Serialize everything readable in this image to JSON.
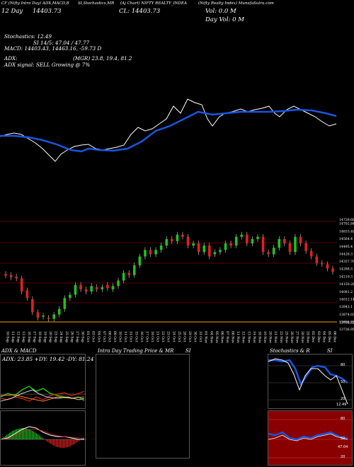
{
  "header": {
    "line1_a": "CF (Nifty Intra Day) ADX,MACD,B",
    "line1_b": "SI,Stochastics,MR",
    "line1_c": "(Aj Chart) NIFTY REALTY_INDEA",
    "line1_d": "(Nifty Realty Index) MunafaSutra.com",
    "close_left": "12 Day",
    "close_left_val": "14403.73",
    "cl_label": "CL: 14403.73",
    "vol_label": "Vol: 0.0  M",
    "day_vol": "Day Vol: 0   M"
  },
  "indicators": {
    "stochastics": "Stochastics: 12.49",
    "si": "SI 14/5: 47.04 / 47.77",
    "macd": "MACD: 14403.43, 14463.16, -59.73 D",
    "adx": "ADX:",
    "mgr": "(MGR) 23.8, 19.4, 81.2",
    "adx_signal": "ADX  signal: SELL Growing @ 7%"
  },
  "price_axis": [
    "14739.68",
    "14702.84",
    "14633.49",
    "14564.4",
    "14495.4",
    "14426.3",
    "14357.78",
    "14288.5",
    "14219.3",
    "14150.28",
    "14081.2",
    "14012.14",
    "13943.1",
    "13874.03",
    "13805.01",
    "13798.52",
    "13736.95"
  ],
  "dates": [
    "10 Sep",
    "11 Sep",
    "12 Sep",
    "13 Sep",
    "16 Sep",
    "17 Sep",
    "18 Sep",
    "19 Sep",
    "20 Sep",
    "23 Sep",
    "24 Sep",
    "25 Sep",
    "26 Sep",
    "27 Sep",
    "30 Sep",
    "01 Oct",
    "03 Oct",
    "04 Oct",
    "07 Oct",
    "08 Oct",
    "09 Oct",
    "10 Oct",
    "11 Oct",
    "14 Oct",
    "15 Oct",
    "16 Oct",
    "17 Oct",
    "18 Oct",
    "21 Oct",
    "22 Oct",
    "23 Oct",
    "24 Oct",
    "25 Oct",
    "28 Oct",
    "29 Oct",
    "30 Oct",
    "31 Oct",
    "01 Nov",
    "04 Nov",
    "05 Nov",
    "06 Nov",
    "07 Nov",
    "08 Nov",
    "11 Nov",
    "12 Nov",
    "13 Nov",
    "14 Nov",
    "18 Nov",
    "19 Nov",
    "20 Nov",
    "21 Nov",
    "22 Nov",
    "25 Nov",
    "26 Nov",
    "27 Nov",
    "28 Nov",
    "29 Nov",
    "02 Dec",
    "03 Dec",
    "04 Dec",
    "05 Dec",
    "06 Dec"
  ],
  "candles": [
    [
      14240,
      14225
    ],
    [
      14230,
      14210
    ],
    [
      14215,
      14200
    ],
    [
      14200,
      14080
    ],
    [
      14090,
      14020
    ],
    [
      14010,
      13890
    ],
    [
      13890,
      13840
    ],
    [
      13850,
      13860
    ],
    [
      13840,
      13830
    ],
    [
      13830,
      13870
    ],
    [
      13870,
      13920
    ],
    [
      13920,
      14020
    ],
    [
      14020,
      14050
    ],
    [
      14050,
      14140
    ],
    [
      14140,
      14100
    ],
    [
      14100,
      14080
    ],
    [
      14080,
      14130
    ],
    [
      14120,
      14100
    ],
    [
      14100,
      14120
    ],
    [
      14140,
      14110
    ],
    [
      14100,
      14130
    ],
    [
      14130,
      14180
    ],
    [
      14180,
      14250
    ],
    [
      14250,
      14230
    ],
    [
      14230,
      14320
    ],
    [
      14320,
      14400
    ],
    [
      14400,
      14460
    ],
    [
      14460,
      14420
    ],
    [
      14420,
      14460
    ],
    [
      14460,
      14500
    ],
    [
      14500,
      14560
    ],
    [
      14560,
      14540
    ],
    [
      14540,
      14600
    ],
    [
      14600,
      14580
    ],
    [
      14580,
      14500
    ],
    [
      14500,
      14520
    ],
    [
      14520,
      14440
    ],
    [
      14440,
      14500
    ],
    [
      14500,
      14400
    ],
    [
      14420,
      14440
    ],
    [
      14440,
      14460
    ],
    [
      14460,
      14520
    ],
    [
      14520,
      14500
    ],
    [
      14500,
      14580
    ],
    [
      14580,
      14600
    ],
    [
      14600,
      14520
    ],
    [
      14520,
      14560
    ],
    [
      14560,
      14580
    ],
    [
      14580,
      14440
    ],
    [
      14440,
      14420
    ],
    [
      14420,
      14480
    ],
    [
      14480,
      14560
    ],
    [
      14560,
      14520
    ],
    [
      14520,
      14440
    ],
    [
      14440,
      14580
    ],
    [
      14580,
      14520
    ],
    [
      14520,
      14450
    ],
    [
      14450,
      14400
    ],
    [
      14400,
      14340
    ],
    [
      14340,
      14330
    ],
    [
      14330,
      14290
    ],
    [
      14290,
      14260
    ]
  ],
  "panels": {
    "adx_title": "ADX  & MACD",
    "adx_values": "ADX: 23.85  +DY: 19.42  -DY: 81.24",
    "intra_title": "Intra  Day Trading Price  & MR",
    "intra_si": "SI",
    "stoch_title": "Stochastics & R",
    "stoch_si": "SI",
    "stoch_levels": [
      "80",
      "50",
      "20"
    ],
    "rsi_levels": [
      "80",
      "50",
      "20"
    ],
    "stoch_last": "12.49",
    "rsi_last": "47.04"
  },
  "colors": {
    "sma": "#1a55e0",
    "up": "#20c020",
    "down": "#e02020",
    "band": "#b00000"
  }
}
